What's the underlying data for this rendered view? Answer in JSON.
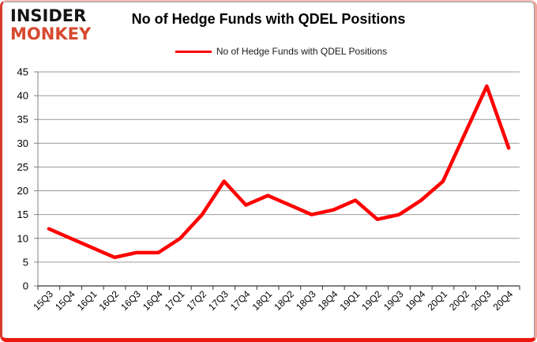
{
  "brand": {
    "line1": "INSIDER",
    "line2": "MONKEY"
  },
  "title": "No of Hedge Funds with QDEL Positions",
  "legend": {
    "label": "No of Hedge Funds with QDEL Positions"
  },
  "colors": {
    "series_red": "#ff0000",
    "brand_red": "#d7492f",
    "gridline": "#9b9b9b",
    "y_axis": "#808080",
    "x_axis": "#333333",
    "tick_label": "#000000"
  },
  "chart_data": {
    "type": "line",
    "title": "No of Hedge Funds with QDEL Positions",
    "categories": [
      "15Q3",
      "15Q4",
      "16Q1",
      "16Q2",
      "16Q3",
      "16Q4",
      "17Q1",
      "17Q2",
      "17Q3",
      "17Q4",
      "18Q1",
      "18Q2",
      "18Q3",
      "18Q4",
      "19Q1",
      "19Q2",
      "19Q3",
      "19Q4",
      "20Q1",
      "20Q2",
      "20Q3",
      "20Q4"
    ],
    "series": [
      {
        "name": "No of Hedge Funds with QDEL Positions",
        "values": [
          12,
          10,
          8,
          6,
          7,
          7,
          10,
          15,
          22,
          17,
          19,
          17,
          15,
          16,
          18,
          14,
          15,
          18,
          22,
          32,
          42,
          29
        ]
      }
    ],
    "xlabel": "",
    "ylabel": "",
    "ylim": [
      0,
      45
    ],
    "ytick_step": 5,
    "yticks": [
      0,
      5,
      10,
      15,
      20,
      25,
      30,
      35,
      40,
      45
    ],
    "grid": true,
    "legend_position": "top",
    "line_color": "#ff0000"
  }
}
